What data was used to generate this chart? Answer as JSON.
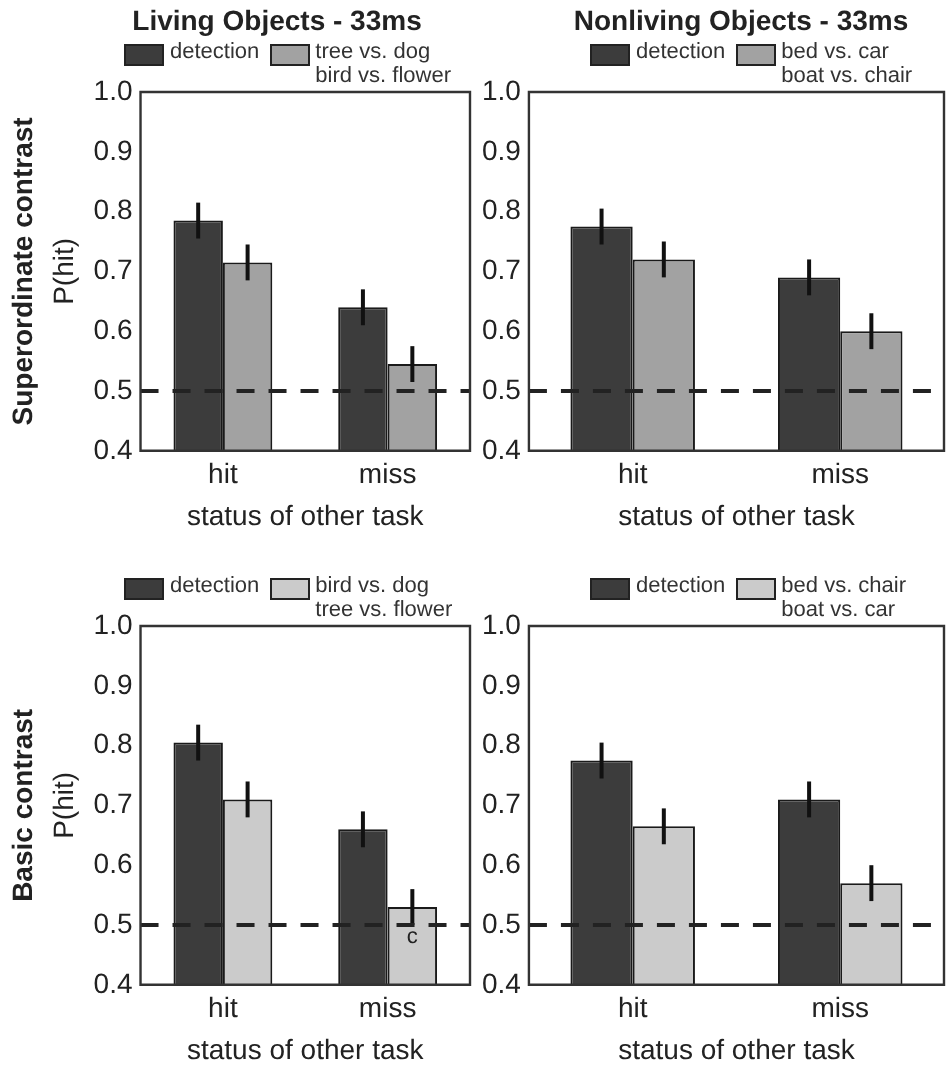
{
  "chart_data": [
    {
      "type": "bar",
      "title": "Living Objects - 33ms",
      "xlabel": "status of other task",
      "ylabel": "P(hit)",
      "annotations": [
        "Superordinate contrast"
      ],
      "categories": [
        "hit",
        "miss"
      ],
      "legend": "top",
      "grid": false,
      "ylim": [
        0.4,
        1.0
      ],
      "yticks": [
        {
          "value": 0.4,
          "label": "0.4"
        },
        {
          "value": 0.5,
          "label": "0.5"
        },
        {
          "value": 0.6,
          "label": "0.6"
        },
        {
          "value": 0.7,
          "label": "0.7"
        },
        {
          "value": 0.8,
          "label": "0.8"
        },
        {
          "value": 0.9,
          "label": "0.9"
        },
        {
          "value": 1.0,
          "label": "1.0"
        }
      ],
      "ref_lines": [
        {
          "axis": "y",
          "value": 0.5,
          "color": "#222222",
          "line_style": "dashed"
        }
      ],
      "series": [
        {
          "name": "detection",
          "color": "#3c3c3c",
          "values": [
            0.785,
            0.64
          ],
          "errors": [
            0.03,
            0.03
          ]
        },
        {
          "name": "tree vs. dog bird vs. flower",
          "color": "#a2a2a2",
          "values": [
            0.715,
            0.545
          ],
          "errors": [
            0.03,
            0.03
          ]
        }
      ]
    },
    {
      "type": "bar",
      "title": "Nonliving Objects - 33ms",
      "xlabel": "status of other task",
      "categories": [
        "hit",
        "miss"
      ],
      "legend": "top",
      "grid": false,
      "ylim": [
        0.4,
        1.0
      ],
      "yticks": [
        {
          "value": 0.4,
          "label": "0.4"
        },
        {
          "value": 0.5,
          "label": "0.5"
        },
        {
          "value": 0.6,
          "label": "0.6"
        },
        {
          "value": 0.7,
          "label": "0.7"
        },
        {
          "value": 0.8,
          "label": "0.8"
        },
        {
          "value": 0.9,
          "label": "0.9"
        },
        {
          "value": 1.0,
          "label": "1.0"
        }
      ],
      "ref_lines": [
        {
          "axis": "y",
          "value": 0.5,
          "color": "#222222",
          "line_style": "dashed"
        }
      ],
      "series": [
        {
          "name": "detection",
          "color": "#3c3c3c",
          "values": [
            0.775,
            0.69
          ],
          "errors": [
            0.03,
            0.03
          ]
        },
        {
          "name": "bed vs. car boat vs. chair",
          "color": "#a2a2a2",
          "values": [
            0.72,
            0.6
          ],
          "errors": [
            0.03,
            0.03
          ]
        }
      ]
    },
    {
      "type": "bar",
      "xlabel": "status of other task",
      "ylabel": "P(hit)",
      "annotations": [
        "Basic contrast",
        {
          "text": "c",
          "x": "miss",
          "y": 0.48
        }
      ],
      "categories": [
        "hit",
        "miss"
      ],
      "legend": "top",
      "grid": false,
      "ylim": [
        0.4,
        1.0
      ],
      "yticks": [
        {
          "value": 0.4,
          "label": "0.4"
        },
        {
          "value": 0.5,
          "label": "0.5"
        },
        {
          "value": 0.6,
          "label": "0.6"
        },
        {
          "value": 0.7,
          "label": "0.7"
        },
        {
          "value": 0.8,
          "label": "0.8"
        },
        {
          "value": 0.9,
          "label": "0.9"
        },
        {
          "value": 1.0,
          "label": "1.0"
        }
      ],
      "ref_lines": [
        {
          "axis": "y",
          "value": 0.5,
          "color": "#222222",
          "line_style": "dashed"
        }
      ],
      "series": [
        {
          "name": "detection",
          "color": "#3c3c3c",
          "values": [
            0.805,
            0.66
          ],
          "errors": [
            0.03,
            0.03
          ]
        },
        {
          "name": "bird vs. dog tree vs. flower",
          "color": "#cbcbcb",
          "values": [
            0.71,
            0.53
          ],
          "errors": [
            0.03,
            0.03
          ]
        }
      ]
    },
    {
      "type": "bar",
      "xlabel": "status of other task",
      "categories": [
        "hit",
        "miss"
      ],
      "legend": "top",
      "grid": false,
      "ylim": [
        0.4,
        1.0
      ],
      "yticks": [
        {
          "value": 0.4,
          "label": "0.4"
        },
        {
          "value": 0.5,
          "label": "0.5"
        },
        {
          "value": 0.6,
          "label": "0.6"
        },
        {
          "value": 0.7,
          "label": "0.7"
        },
        {
          "value": 0.8,
          "label": "0.8"
        },
        {
          "value": 0.9,
          "label": "0.9"
        },
        {
          "value": 1.0,
          "label": "1.0"
        }
      ],
      "ref_lines": [
        {
          "axis": "y",
          "value": 0.5,
          "color": "#222222",
          "line_style": "dashed"
        }
      ],
      "series": [
        {
          "name": "detection",
          "color": "#3c3c3c",
          "values": [
            0.775,
            0.71
          ],
          "errors": [
            0.03,
            0.03
          ]
        },
        {
          "name": "bed vs. chair boat vs. car",
          "color": "#cbcbcb",
          "values": [
            0.665,
            0.57
          ],
          "errors": [
            0.03,
            0.03
          ]
        }
      ]
    }
  ]
}
